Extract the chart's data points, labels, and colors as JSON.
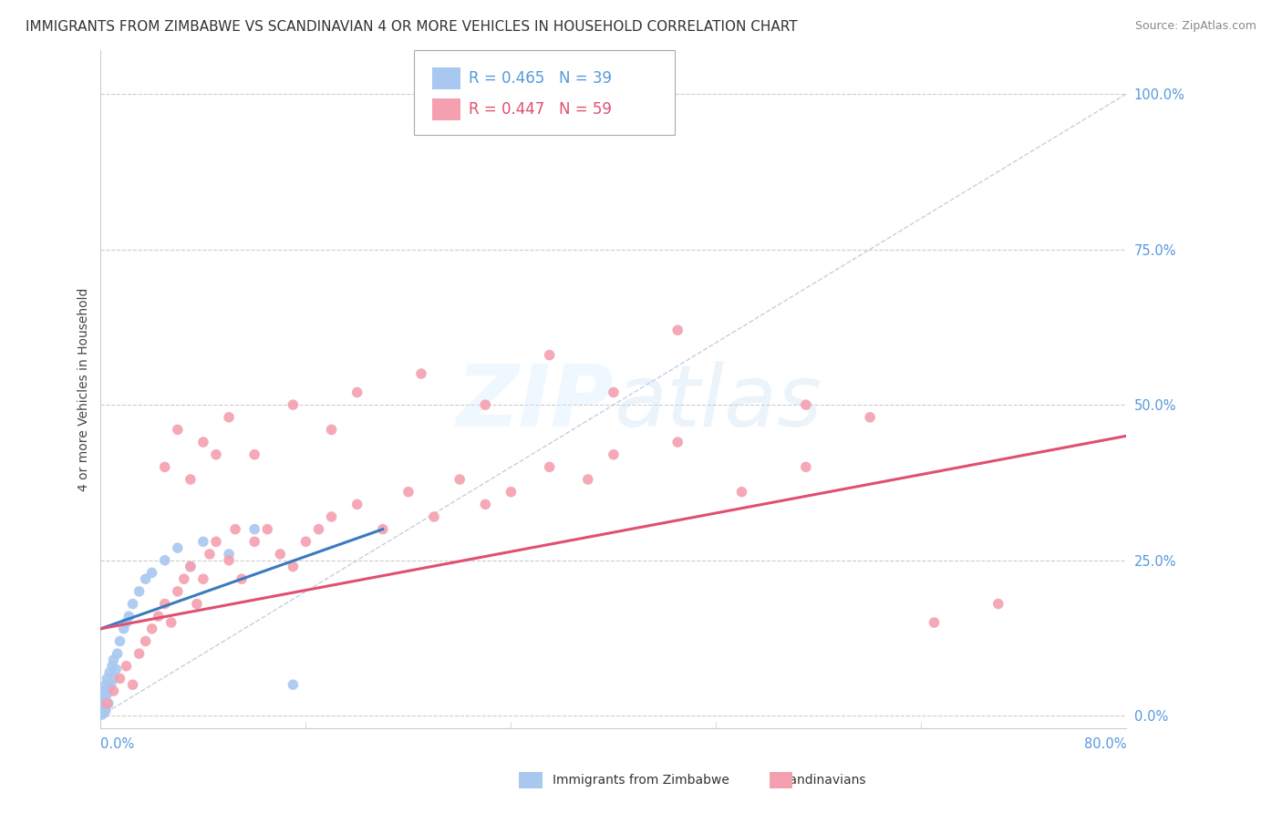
{
  "title": "IMMIGRANTS FROM ZIMBABWE VS SCANDINAVIAN 4 OR MORE VEHICLES IN HOUSEHOLD CORRELATION CHART",
  "source": "Source: ZipAtlas.com",
  "ylabel": "4 or more Vehicles in Household",
  "right_ytick_vals": [
    0.0,
    25.0,
    50.0,
    75.0,
    100.0
  ],
  "xmin": 0.0,
  "xmax": 80.0,
  "ymin": -2.0,
  "ymax": 107.0,
  "watermark_text": "ZIPatlas",
  "blue_color": "#a8c8f0",
  "pink_color": "#f4a0b0",
  "blue_line_color": "#3a7abf",
  "pink_line_color": "#e05070",
  "label_color": "#5599dd",
  "grid_color": "#cccccc",
  "background_color": "#ffffff",
  "title_fontsize": 11,
  "source_fontsize": 9,
  "axis_label_fontsize": 10,
  "legend_fontsize": 12,
  "scatter_size": 70,
  "blue_scatter": [
    [
      0.1,
      0.5
    ],
    [
      0.15,
      1.0
    ],
    [
      0.2,
      0.8
    ],
    [
      0.2,
      2.0
    ],
    [
      0.25,
      3.0
    ],
    [
      0.3,
      1.5
    ],
    [
      0.3,
      4.0
    ],
    [
      0.35,
      2.5
    ],
    [
      0.4,
      5.0
    ],
    [
      0.4,
      1.0
    ],
    [
      0.5,
      3.5
    ],
    [
      0.5,
      6.0
    ],
    [
      0.6,
      4.5
    ],
    [
      0.6,
      2.0
    ],
    [
      0.7,
      7.0
    ],
    [
      0.8,
      5.0
    ],
    [
      0.9,
      8.0
    ],
    [
      1.0,
      6.0
    ],
    [
      1.0,
      9.0
    ],
    [
      1.2,
      7.5
    ],
    [
      1.3,
      10.0
    ],
    [
      1.5,
      12.0
    ],
    [
      1.8,
      14.0
    ],
    [
      2.0,
      15.0
    ],
    [
      2.2,
      16.0
    ],
    [
      2.5,
      18.0
    ],
    [
      3.0,
      20.0
    ],
    [
      3.5,
      22.0
    ],
    [
      4.0,
      23.0
    ],
    [
      5.0,
      25.0
    ],
    [
      6.0,
      27.0
    ],
    [
      7.0,
      24.0
    ],
    [
      8.0,
      28.0
    ],
    [
      10.0,
      26.0
    ],
    [
      12.0,
      30.0
    ],
    [
      0.1,
      0.2
    ],
    [
      0.2,
      1.5
    ],
    [
      0.3,
      0.5
    ],
    [
      15.0,
      5.0
    ]
  ],
  "pink_scatter": [
    [
      0.5,
      2.0
    ],
    [
      1.0,
      4.0
    ],
    [
      1.5,
      6.0
    ],
    [
      2.0,
      8.0
    ],
    [
      2.5,
      5.0
    ],
    [
      3.0,
      10.0
    ],
    [
      3.5,
      12.0
    ],
    [
      4.0,
      14.0
    ],
    [
      4.5,
      16.0
    ],
    [
      5.0,
      18.0
    ],
    [
      5.5,
      15.0
    ],
    [
      6.0,
      20.0
    ],
    [
      6.5,
      22.0
    ],
    [
      7.0,
      24.0
    ],
    [
      7.5,
      18.0
    ],
    [
      8.0,
      22.0
    ],
    [
      8.5,
      26.0
    ],
    [
      9.0,
      28.0
    ],
    [
      10.0,
      25.0
    ],
    [
      10.5,
      30.0
    ],
    [
      11.0,
      22.0
    ],
    [
      12.0,
      28.0
    ],
    [
      13.0,
      30.0
    ],
    [
      14.0,
      26.0
    ],
    [
      15.0,
      24.0
    ],
    [
      16.0,
      28.0
    ],
    [
      17.0,
      30.0
    ],
    [
      18.0,
      32.0
    ],
    [
      20.0,
      34.0
    ],
    [
      22.0,
      30.0
    ],
    [
      24.0,
      36.0
    ],
    [
      26.0,
      32.0
    ],
    [
      28.0,
      38.0
    ],
    [
      30.0,
      34.0
    ],
    [
      32.0,
      36.0
    ],
    [
      35.0,
      40.0
    ],
    [
      38.0,
      38.0
    ],
    [
      40.0,
      42.0
    ],
    [
      45.0,
      44.0
    ],
    [
      50.0,
      36.0
    ],
    [
      55.0,
      40.0
    ],
    [
      60.0,
      48.0
    ],
    [
      65.0,
      15.0
    ],
    [
      70.0,
      18.0
    ],
    [
      5.0,
      40.0
    ],
    [
      6.0,
      46.0
    ],
    [
      7.0,
      38.0
    ],
    [
      8.0,
      44.0
    ],
    [
      9.0,
      42.0
    ],
    [
      10.0,
      48.0
    ],
    [
      12.0,
      42.0
    ],
    [
      15.0,
      50.0
    ],
    [
      18.0,
      46.0
    ],
    [
      20.0,
      52.0
    ],
    [
      25.0,
      55.0
    ],
    [
      30.0,
      50.0
    ],
    [
      35.0,
      58.0
    ],
    [
      40.0,
      52.0
    ],
    [
      45.0,
      62.0
    ],
    [
      55.0,
      50.0
    ]
  ],
  "blue_trend": [
    0.0,
    14.0,
    22.0,
    30.0
  ],
  "pink_trend": [
    0.0,
    14.0,
    80.0,
    45.0
  ]
}
